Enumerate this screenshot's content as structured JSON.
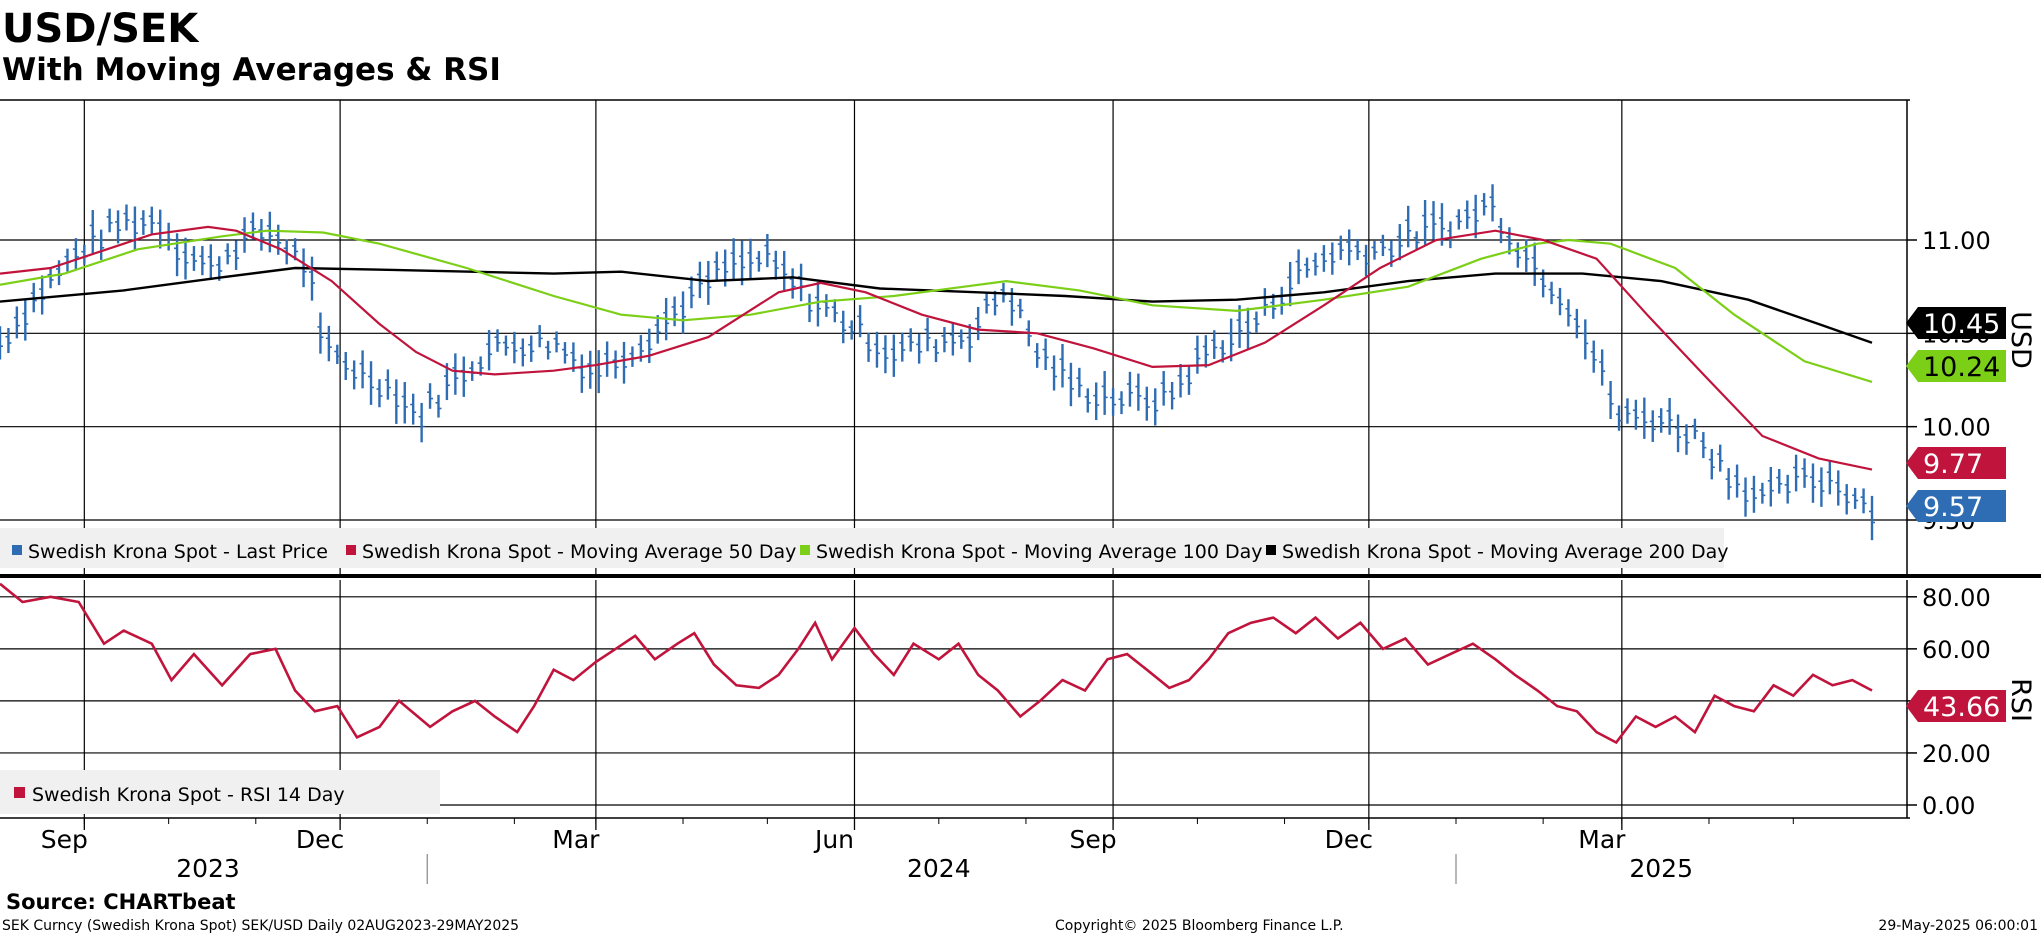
{
  "header": {
    "title": "USD/SEK",
    "subtitle": "With Moving Averages & RSI",
    "source": "Source: CHARTbeat"
  },
  "footer": {
    "left": "SEK Curncy (Swedish Krona Spot) SEK/USD  Daily 02AUG2023-29MAY2025",
    "center": "Copyright© 2025 Bloomberg Finance L.P.",
    "right": "29-May-2025 06:00:01"
  },
  "colors": {
    "price": "#2e6db4",
    "ma50": "#c0143c",
    "ma100": "#7ccf17",
    "ma200": "#000000",
    "rsi": "#c0143c"
  },
  "chart_data": [
    {
      "type": "line",
      "title": "USD/SEK",
      "subtitle": "With Moving Averages & RSI",
      "ylabel": "USD",
      "x_axis": {
        "month_ticks": [
          "Sep",
          "Dec",
          "Mar",
          "Jun",
          "Sep",
          "Dec",
          "Mar"
        ],
        "year_labels": [
          "2023",
          "2024",
          "2025"
        ]
      },
      "y_ticks": [
        "11.00",
        "10.50",
        "10.00",
        "9.50"
      ],
      "ylim": [
        9.2,
        11.75
      ],
      "x_range": [
        "2023-08-02",
        "2025-05-29"
      ],
      "legend_position": "bottom-left",
      "grid": true,
      "last_values": {
        "price": "9.57",
        "ma50": "9.77",
        "ma100": "10.24",
        "ma200": "10.45"
      },
      "series": [
        {
          "name": "Swedish Krona Spot - Last Price",
          "kind": "ohlc-bar",
          "points": [
            [
              "2023-08-02",
              10.45
            ],
            [
              "2023-08-15",
              10.7
            ],
            [
              "2023-08-31",
              10.95
            ],
            [
              "2023-09-15",
              11.1
            ],
            [
              "2023-09-28",
              11.1
            ],
            [
              "2023-10-05",
              10.95
            ],
            [
              "2023-10-16",
              10.85
            ],
            [
              "2023-10-27",
              11.0
            ],
            [
              "2023-11-06",
              11.05
            ],
            [
              "2023-11-20",
              10.85
            ],
            [
              "2023-11-24",
              10.45
            ],
            [
              "2023-12-07",
              10.3
            ],
            [
              "2023-12-20",
              10.2
            ],
            [
              "2023-12-29",
              10.05
            ],
            [
              "2024-01-10",
              10.25
            ],
            [
              "2024-01-22",
              10.4
            ],
            [
              "2024-02-01",
              10.45
            ],
            [
              "2024-02-15",
              10.45
            ],
            [
              "2024-02-29",
              10.3
            ],
            [
              "2024-03-07",
              10.35
            ],
            [
              "2024-03-21",
              10.5
            ],
            [
              "2024-04-04",
              10.7
            ],
            [
              "2024-04-16",
              10.85
            ],
            [
              "2024-04-30",
              10.9
            ],
            [
              "2024-05-15",
              10.7
            ],
            [
              "2024-05-30",
              10.55
            ],
            [
              "2024-06-14",
              10.4
            ],
            [
              "2024-06-28",
              10.45
            ],
            [
              "2024-07-12",
              10.5
            ],
            [
              "2024-07-25",
              10.75
            ],
            [
              "2024-08-05",
              10.4
            ],
            [
              "2024-08-20",
              10.2
            ],
            [
              "2024-09-04",
              10.15
            ],
            [
              "2024-09-20",
              10.15
            ],
            [
              "2024-10-04",
              10.4
            ],
            [
              "2024-10-21",
              10.55
            ],
            [
              "2024-11-04",
              10.8
            ],
            [
              "2024-11-20",
              10.95
            ],
            [
              "2024-12-05",
              10.95
            ],
            [
              "2024-12-20",
              11.05
            ],
            [
              "2025-01-03",
              11.1
            ],
            [
              "2025-01-13",
              11.2
            ],
            [
              "2025-01-24",
              10.95
            ],
            [
              "2025-02-05",
              10.75
            ],
            [
              "2025-02-13",
              10.6
            ],
            [
              "2025-02-28",
              10.05
            ],
            [
              "2025-03-14",
              10.05
            ],
            [
              "2025-03-28",
              9.95
            ],
            [
              "2025-04-08",
              9.75
            ],
            [
              "2025-04-21",
              9.6
            ],
            [
              "2025-04-30",
              9.7
            ],
            [
              "2025-05-14",
              9.72
            ],
            [
              "2025-05-29",
              9.57
            ]
          ]
        },
        {
          "name": "Swedish Krona Spot - Moving Average 50 Day",
          "points": [
            [
              "2023-08-02",
              10.82
            ],
            [
              "2023-08-20",
              10.85
            ],
            [
              "2023-09-05",
              10.93
            ],
            [
              "2023-09-25",
              11.03
            ],
            [
              "2023-10-15",
              11.07
            ],
            [
              "2023-10-25",
              11.05
            ],
            [
              "2023-11-10",
              10.95
            ],
            [
              "2023-11-28",
              10.78
            ],
            [
              "2023-12-15",
              10.55
            ],
            [
              "2023-12-28",
              10.4
            ],
            [
              "2024-01-10",
              10.3
            ],
            [
              "2024-01-25",
              10.28
            ],
            [
              "2024-02-15",
              10.3
            ],
            [
              "2024-03-01",
              10.33
            ],
            [
              "2024-03-20",
              10.38
            ],
            [
              "2024-04-10",
              10.48
            ],
            [
              "2024-05-05",
              10.72
            ],
            [
              "2024-05-20",
              10.77
            ],
            [
              "2024-06-05",
              10.72
            ],
            [
              "2024-06-25",
              10.6
            ],
            [
              "2024-07-15",
              10.52
            ],
            [
              "2024-08-05",
              10.5
            ],
            [
              "2024-08-25",
              10.42
            ],
            [
              "2024-09-15",
              10.32
            ],
            [
              "2024-10-05",
              10.33
            ],
            [
              "2024-10-25",
              10.45
            ],
            [
              "2024-11-15",
              10.65
            ],
            [
              "2024-12-05",
              10.85
            ],
            [
              "2024-12-25",
              11.0
            ],
            [
              "2025-01-15",
              11.05
            ],
            [
              "2025-02-01",
              11.0
            ],
            [
              "2025-02-20",
              10.9
            ],
            [
              "2025-03-10",
              10.6
            ],
            [
              "2025-03-30",
              10.28
            ],
            [
              "2025-04-20",
              9.95
            ],
            [
              "2025-05-10",
              9.83
            ],
            [
              "2025-05-29",
              9.77
            ]
          ]
        },
        {
          "name": "Swedish Krona Spot - Moving Average 100 Day",
          "points": [
            [
              "2023-08-02",
              10.76
            ],
            [
              "2023-08-25",
              10.82
            ],
            [
              "2023-09-20",
              10.95
            ],
            [
              "2023-10-20",
              11.02
            ],
            [
              "2023-11-05",
              11.05
            ],
            [
              "2023-11-25",
              11.04
            ],
            [
              "2023-12-15",
              10.98
            ],
            [
              "2024-01-15",
              10.85
            ],
            [
              "2024-02-15",
              10.7
            ],
            [
              "2024-03-10",
              10.6
            ],
            [
              "2024-04-01",
              10.57
            ],
            [
              "2024-04-25",
              10.6
            ],
            [
              "2024-05-20",
              10.67
            ],
            [
              "2024-06-15",
              10.7
            ],
            [
              "2024-07-10",
              10.75
            ],
            [
              "2024-07-25",
              10.78
            ],
            [
              "2024-08-20",
              10.73
            ],
            [
              "2024-09-15",
              10.65
            ],
            [
              "2024-10-15",
              10.62
            ],
            [
              "2024-11-15",
              10.68
            ],
            [
              "2024-12-15",
              10.75
            ],
            [
              "2025-01-10",
              10.9
            ],
            [
              "2025-01-30",
              10.98
            ],
            [
              "2025-02-10",
              11.0
            ],
            [
              "2025-02-25",
              10.98
            ],
            [
              "2025-03-20",
              10.85
            ],
            [
              "2025-04-10",
              10.6
            ],
            [
              "2025-05-05",
              10.35
            ],
            [
              "2025-05-29",
              10.24
            ]
          ]
        },
        {
          "name": "Swedish Krona Spot - Moving Average 200 Day",
          "points": [
            [
              "2023-08-02",
              10.67
            ],
            [
              "2023-09-15",
              10.73
            ],
            [
              "2023-10-20",
              10.8
            ],
            [
              "2023-11-15",
              10.85
            ],
            [
              "2023-12-20",
              10.84
            ],
            [
              "2024-02-15",
              10.82
            ],
            [
              "2024-03-10",
              10.83
            ],
            [
              "2024-04-10",
              10.78
            ],
            [
              "2024-05-10",
              10.8
            ],
            [
              "2024-06-10",
              10.74
            ],
            [
              "2024-07-15",
              10.72
            ],
            [
              "2024-08-15",
              10.7
            ],
            [
              "2024-09-15",
              10.67
            ],
            [
              "2024-10-15",
              10.68
            ],
            [
              "2024-11-15",
              10.72
            ],
            [
              "2024-12-15",
              10.78
            ],
            [
              "2025-01-15",
              10.82
            ],
            [
              "2025-02-15",
              10.82
            ],
            [
              "2025-03-15",
              10.78
            ],
            [
              "2025-04-15",
              10.68
            ],
            [
              "2025-05-10",
              10.55
            ],
            [
              "2025-05-29",
              10.45
            ]
          ]
        }
      ]
    },
    {
      "type": "line",
      "ylabel": "RSI",
      "y_ticks": [
        "80.00",
        "60.00",
        "40.00",
        "20.00",
        "0.00"
      ],
      "ylim": [
        -5,
        88
      ],
      "legend_position": "bottom-left",
      "last_value": "43.66",
      "series": [
        {
          "name": "Swedish Krona Spot - RSI 14 Day",
          "points": [
            [
              "2023-08-02",
              85
            ],
            [
              "2023-08-10",
              78
            ],
            [
              "2023-08-20",
              80
            ],
            [
              "2023-08-30",
              78
            ],
            [
              "2023-09-08",
              62
            ],
            [
              "2023-09-15",
              67
            ],
            [
              "2023-09-25",
              62
            ],
            [
              "2023-10-02",
              48
            ],
            [
              "2023-10-10",
              58
            ],
            [
              "2023-10-20",
              46
            ],
            [
              "2023-10-30",
              58
            ],
            [
              "2023-11-08",
              60
            ],
            [
              "2023-11-15",
              44
            ],
            [
              "2023-11-22",
              36
            ],
            [
              "2023-11-30",
              38
            ],
            [
              "2023-12-07",
              26
            ],
            [
              "2023-12-15",
              30
            ],
            [
              "2023-12-22",
              40
            ],
            [
              "2024-01-02",
              30
            ],
            [
              "2024-01-10",
              36
            ],
            [
              "2024-01-18",
              40
            ],
            [
              "2024-01-25",
              34
            ],
            [
              "2024-02-02",
              28
            ],
            [
              "2024-02-08",
              38
            ],
            [
              "2024-02-15",
              52
            ],
            [
              "2024-02-22",
              48
            ],
            [
              "2024-03-01",
              55
            ],
            [
              "2024-03-08",
              60
            ],
            [
              "2024-03-15",
              65
            ],
            [
              "2024-03-22",
              56
            ],
            [
              "2024-03-30",
              62
            ],
            [
              "2024-04-05",
              66
            ],
            [
              "2024-04-12",
              54
            ],
            [
              "2024-04-20",
              46
            ],
            [
              "2024-04-28",
              45
            ],
            [
              "2024-05-05",
              50
            ],
            [
              "2024-05-12",
              60
            ],
            [
              "2024-05-18",
              70
            ],
            [
              "2024-05-24",
              56
            ],
            [
              "2024-06-01",
              68
            ],
            [
              "2024-06-08",
              58
            ],
            [
              "2024-06-15",
              50
            ],
            [
              "2024-06-22",
              62
            ],
            [
              "2024-07-01",
              56
            ],
            [
              "2024-07-08",
              62
            ],
            [
              "2024-07-15",
              50
            ],
            [
              "2024-07-22",
              44
            ],
            [
              "2024-07-30",
              34
            ],
            [
              "2024-08-06",
              40
            ],
            [
              "2024-08-14",
              48
            ],
            [
              "2024-08-22",
              44
            ],
            [
              "2024-08-30",
              56
            ],
            [
              "2024-09-06",
              58
            ],
            [
              "2024-09-13",
              52
            ],
            [
              "2024-09-21",
              45
            ],
            [
              "2024-09-28",
              48
            ],
            [
              "2024-10-05",
              56
            ],
            [
              "2024-10-12",
              66
            ],
            [
              "2024-10-20",
              70
            ],
            [
              "2024-10-28",
              72
            ],
            [
              "2024-11-05",
              66
            ],
            [
              "2024-11-12",
              72
            ],
            [
              "2024-11-20",
              64
            ],
            [
              "2024-11-28",
              70
            ],
            [
              "2024-12-06",
              60
            ],
            [
              "2024-12-14",
              64
            ],
            [
              "2024-12-22",
              54
            ],
            [
              "2024-12-30",
              58
            ],
            [
              "2025-01-07",
              62
            ],
            [
              "2025-01-15",
              56
            ],
            [
              "2025-01-22",
              50
            ],
            [
              "2025-01-30",
              44
            ],
            [
              "2025-02-06",
              38
            ],
            [
              "2025-02-13",
              36
            ],
            [
              "2025-02-20",
              28
            ],
            [
              "2025-02-27",
              24
            ],
            [
              "2025-03-06",
              34
            ],
            [
              "2025-03-13",
              30
            ],
            [
              "2025-03-20",
              34
            ],
            [
              "2025-03-27",
              28
            ],
            [
              "2025-04-03",
              42
            ],
            [
              "2025-04-10",
              38
            ],
            [
              "2025-04-17",
              36
            ],
            [
              "2025-04-24",
              46
            ],
            [
              "2025-05-01",
              42
            ],
            [
              "2025-05-08",
              50
            ],
            [
              "2025-05-15",
              46
            ],
            [
              "2025-05-22",
              48
            ],
            [
              "2025-05-29",
              44
            ]
          ]
        }
      ]
    }
  ]
}
